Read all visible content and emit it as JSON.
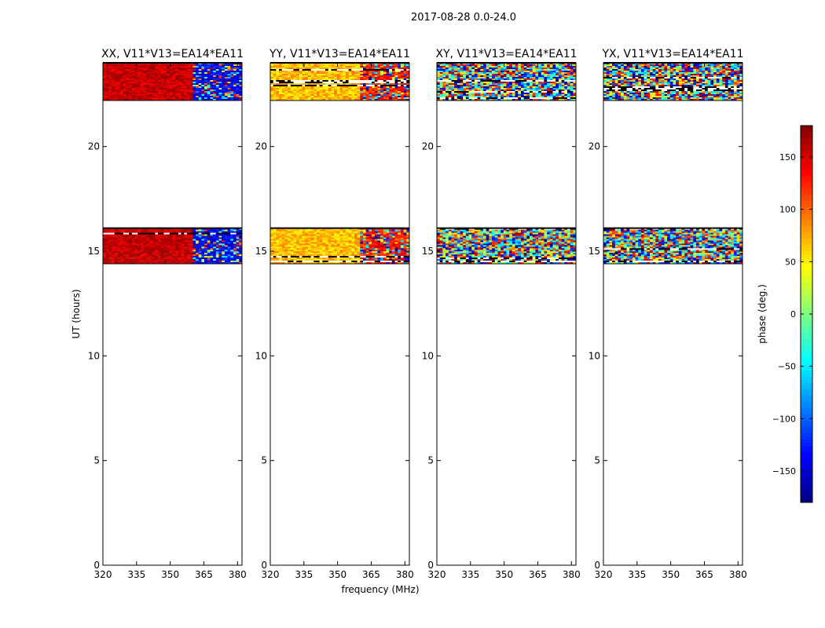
{
  "figure": {
    "suptitle": "2017-08-28 0.0-24.0",
    "xlabel": "frequency (MHz)",
    "ylabel": "UT (hours)"
  },
  "chart_data": {
    "type": "heatmap",
    "title": "2017-08-28 0.0-24.0",
    "xlabel": "frequency (MHz)",
    "ylabel": "UT (hours)",
    "xlim": [
      320,
      382
    ],
    "ylim": [
      0,
      24
    ],
    "xticks": [
      320,
      335,
      350,
      365,
      380
    ],
    "yticks": [
      0,
      5,
      10,
      15,
      20
    ],
    "panels": [
      {
        "title": "XX, V11*V13=EA14*EA11",
        "pattern": "structured",
        "palette": "red",
        "bands": [
          {
            "name": "band-2",
            "from": 22.2,
            "to": 24.0
          },
          {
            "name": "band-1",
            "from": 14.4,
            "to": 16.1
          }
        ]
      },
      {
        "title": "YY, V11*V13=EA14*EA11",
        "pattern": "structured",
        "palette": "yellow",
        "bands": [
          {
            "name": "band-2",
            "from": 22.2,
            "to": 24.0
          },
          {
            "name": "band-1",
            "from": 14.4,
            "to": 16.1
          }
        ]
      },
      {
        "title": "XY, V11*V13=EA14*EA11",
        "pattern": "noise",
        "palette": "mixed",
        "bands": [
          {
            "name": "band-2",
            "from": 22.2,
            "to": 24.0
          },
          {
            "name": "band-1",
            "from": 14.4,
            "to": 16.1
          }
        ]
      },
      {
        "title": "YX, V11*V13=EA14*EA11",
        "pattern": "noise",
        "palette": "mixed",
        "bands": [
          {
            "name": "band-2",
            "from": 22.2,
            "to": 24.0
          },
          {
            "name": "band-1",
            "from": 14.4,
            "to": 16.1
          }
        ]
      }
    ],
    "colorbar": {
      "label": "phase (deg.)",
      "range": [
        -180,
        180
      ],
      "ticks": [
        150,
        100,
        50,
        0,
        -50,
        -100,
        -150
      ],
      "colormap": "jet"
    }
  }
}
